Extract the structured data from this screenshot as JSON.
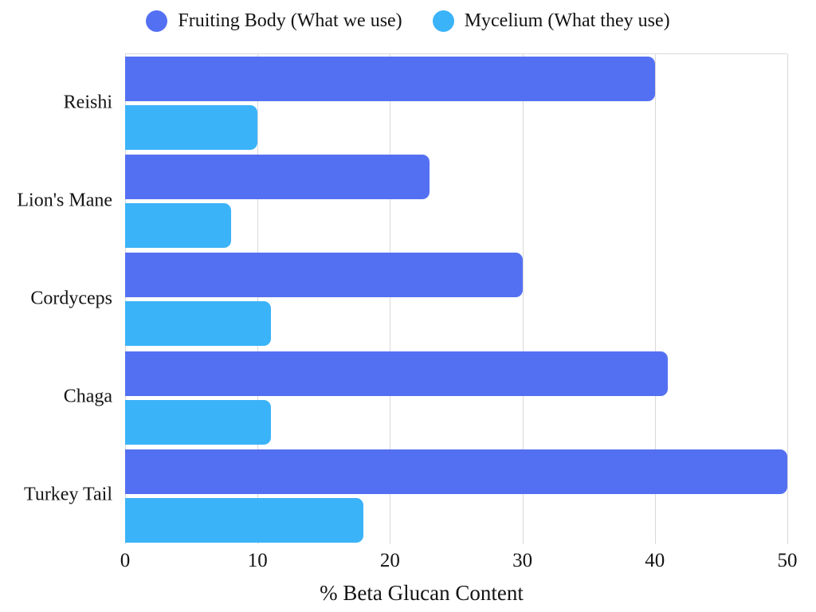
{
  "chart_data": {
    "type": "bar",
    "orientation": "horizontal",
    "title": "",
    "categories": [
      "Reishi",
      "Lion's Mane",
      "Cordyceps",
      "Chaga",
      "Turkey Tail"
    ],
    "series": [
      {
        "name": "Fruiting Body (What we use)",
        "color": "#5470f2",
        "values": [
          40,
          23,
          30,
          41,
          50
        ]
      },
      {
        "name": "Mycelium (What they use)",
        "color": "#3bb3f8",
        "values": [
          10,
          8,
          11,
          11,
          18
        ]
      }
    ],
    "xlabel": "% Beta Glucan Content",
    "ylabel": "",
    "xlim": [
      0,
      50
    ],
    "xticks": [
      0,
      10,
      20,
      30,
      40,
      50
    ],
    "grid": true,
    "legend_position": "top",
    "colors": {
      "gridline": "#d9d9d9",
      "text": "#141414",
      "background": "#ffffff"
    }
  }
}
